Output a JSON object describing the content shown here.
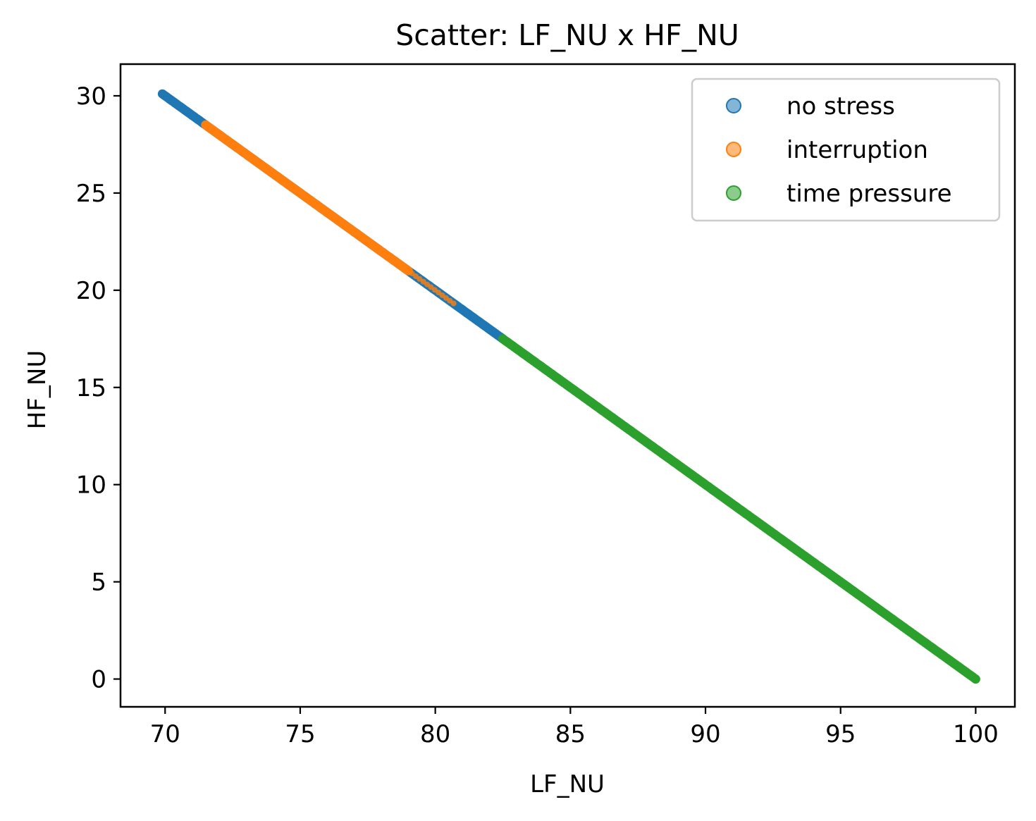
{
  "chart_data": {
    "type": "scatter",
    "title": "Scatter: LF_NU x HF_NU",
    "xlabel": "LF_NU",
    "ylabel": "HF_NU",
    "xlim": [
      68.35,
      101.45
    ],
    "ylim": [
      -1.43,
      31.63
    ],
    "xticks": [
      70,
      75,
      80,
      85,
      90,
      95,
      100
    ],
    "yticks": [
      0,
      5,
      10,
      15,
      20,
      25,
      30
    ],
    "grid": false,
    "legend_position": "top-right",
    "relation": "HF_NU = 100 - LF_NU",
    "series": [
      {
        "name": "no stress",
        "color": "#1f77b4",
        "segments": [
          [
            69.9,
            82.5
          ]
        ]
      },
      {
        "name": "interruption",
        "color": "#ff7f0e",
        "segments": [
          [
            71.5,
            79.0
          ],
          [
            79.0,
            80.8
          ]
        ]
      },
      {
        "name": "time pressure",
        "color": "#2ca02c",
        "segments": [
          [
            82.5,
            100.0
          ]
        ]
      }
    ]
  }
}
